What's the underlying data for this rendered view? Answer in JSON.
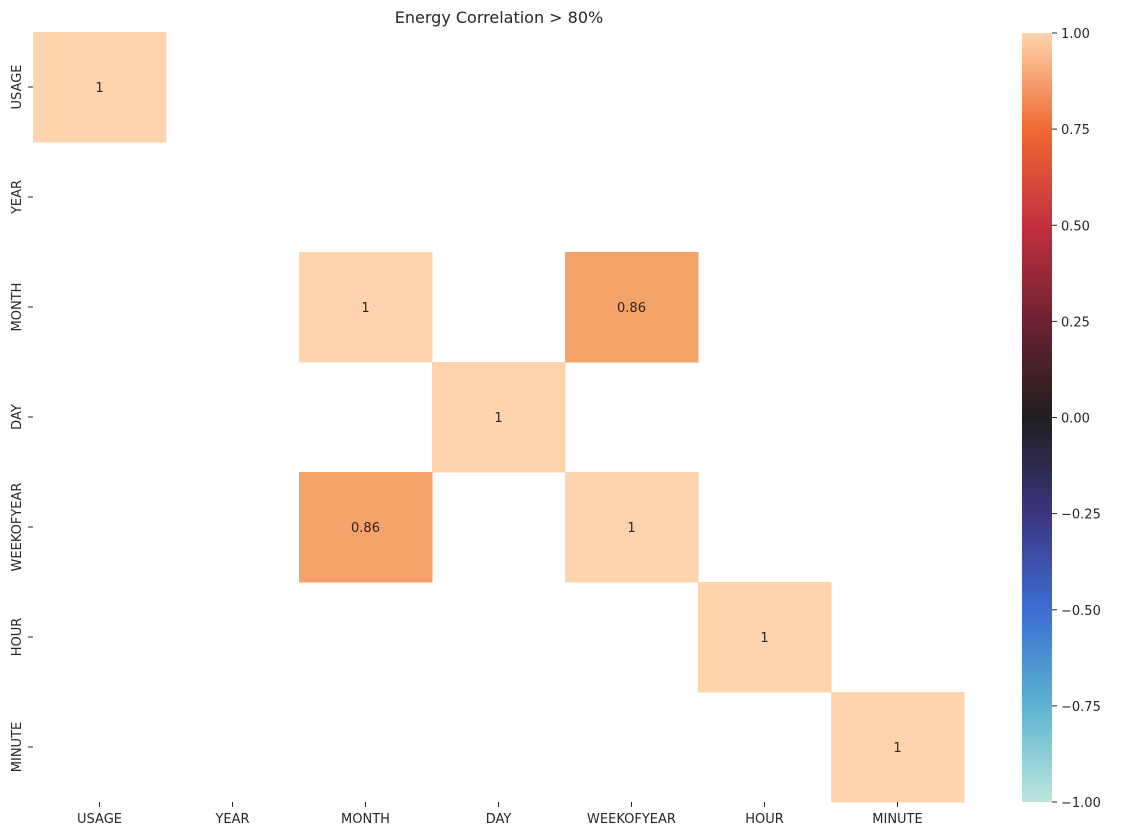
{
  "chart_data": {
    "type": "heatmap",
    "title": "Energy Correlation > 80%",
    "x_labels": [
      "USAGE",
      "YEAR",
      "MONTH",
      "DAY",
      "WEEKOFYEAR",
      "HOUR",
      "MINUTE"
    ],
    "y_labels": [
      "USAGE",
      "YEAR",
      "MONTH",
      "DAY",
      "WEEKOFYEAR",
      "HOUR",
      "MINUTE"
    ],
    "values": [
      [
        1,
        null,
        null,
        null,
        null,
        null,
        null
      ],
      [
        null,
        null,
        null,
        null,
        null,
        null,
        null
      ],
      [
        null,
        null,
        1,
        null,
        0.86,
        null,
        null
      ],
      [
        null,
        null,
        null,
        1,
        null,
        null,
        null
      ],
      [
        null,
        null,
        0.86,
        null,
        1,
        null,
        null
      ],
      [
        null,
        null,
        null,
        null,
        null,
        1,
        null
      ],
      [
        null,
        null,
        null,
        null,
        null,
        null,
        1
      ]
    ],
    "cell_labels": [
      [
        "1",
        "",
        "",
        "",
        "",
        "",
        ""
      ],
      [
        "",
        "",
        "",
        "",
        "",
        "",
        ""
      ],
      [
        "",
        "",
        "1",
        "",
        "0.86",
        "",
        ""
      ],
      [
        "",
        "",
        "",
        "1",
        "",
        "",
        ""
      ],
      [
        "",
        "",
        "0.86",
        "",
        "1",
        "",
        ""
      ],
      [
        "",
        "",
        "",
        "",
        "",
        "1",
        ""
      ],
      [
        "",
        "",
        "",
        "",
        "",
        "",
        "1"
      ]
    ],
    "colorbar": {
      "vmin": -1.0,
      "vmax": 1.0,
      "ticks": [
        1.0,
        0.75,
        0.5,
        0.25,
        0.0,
        -0.25,
        -0.5,
        -0.75,
        -1.0
      ],
      "tick_labels": [
        "1.00",
        "0.75",
        "0.50",
        "0.25",
        "0.00",
        "−0.25",
        "−0.50",
        "−0.75",
        "−1.00"
      ],
      "colormap": "icefire",
      "colormap_stops": [
        {
          "v": -1.0,
          "color": "#bde6dd"
        },
        {
          "v": -0.75,
          "color": "#5cb4d0"
        },
        {
          "v": -0.5,
          "color": "#3d6dd3"
        },
        {
          "v": -0.25,
          "color": "#3b3580"
        },
        {
          "v": 0.0,
          "color": "#1f1e1e"
        },
        {
          "v": 0.25,
          "color": "#6e2131"
        },
        {
          "v": 0.5,
          "color": "#c4303f"
        },
        {
          "v": 0.75,
          "color": "#ef6a32"
        },
        {
          "v": 1.0,
          "color": "#fed4ae"
        }
      ]
    },
    "cell_colors": {
      "1": "#fed4ae",
      "0.86": "#f5a36b"
    },
    "grid": false
  }
}
